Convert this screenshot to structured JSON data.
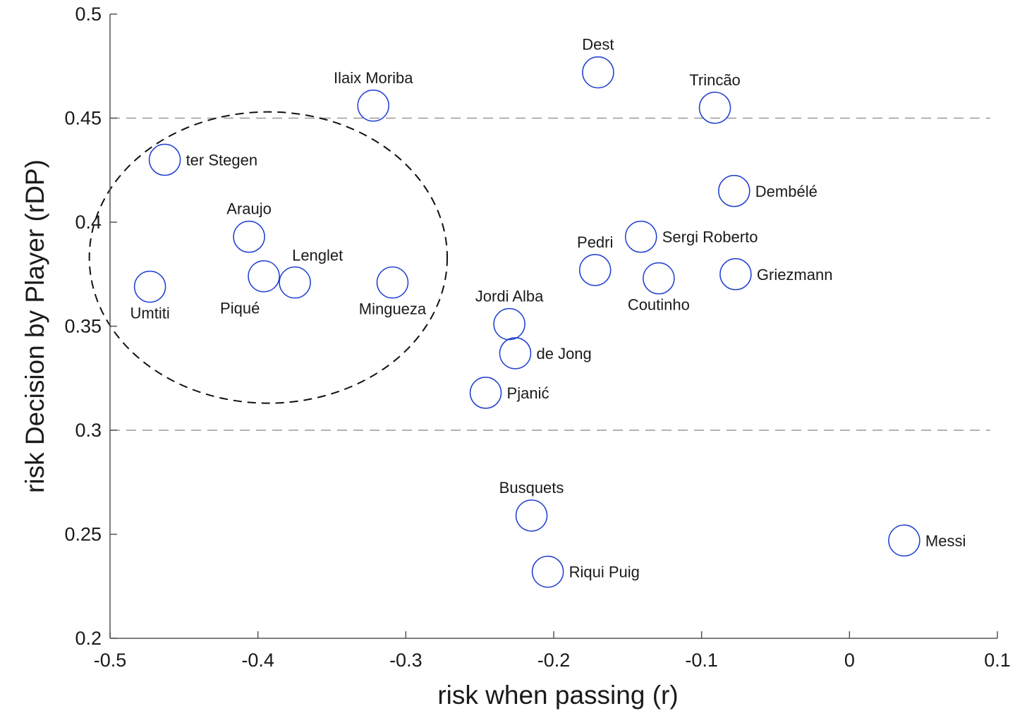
{
  "chart_data": {
    "type": "scatter",
    "xlabel": "risk when passing (r)",
    "ylabel": "risk Decision by Player (rDP)",
    "xlim": [
      -0.5,
      0.1
    ],
    "ylim": [
      0.2,
      0.5
    ],
    "x_ticks": [
      -0.5,
      -0.4,
      -0.3,
      -0.2,
      -0.1,
      0,
      0.1
    ],
    "x_tick_labels": [
      "-0.5",
      "-0.4",
      "-0.3",
      "-0.2",
      "-0.1",
      "0",
      "0.1"
    ],
    "y_ticks": [
      0.2,
      0.25,
      0.3,
      0.35,
      0.4,
      0.45,
      0.5
    ],
    "y_tick_labels": [
      "0.2",
      "0.25",
      "0.3",
      "0.35",
      "0.4",
      "0.45",
      "0.5"
    ],
    "grid": false,
    "reference_lines": [
      0.3,
      0.45
    ],
    "marker_color": "#1f3fcf",
    "reference_line_color": "#999999",
    "points": [
      {
        "label": "Dest",
        "x": -0.17,
        "y": 0.472,
        "label_pos": "above"
      },
      {
        "label": "Trincão",
        "x": -0.091,
        "y": 0.455,
        "label_pos": "above"
      },
      {
        "label": "Ilaix Moriba",
        "x": -0.322,
        "y": 0.456,
        "label_pos": "above"
      },
      {
        "label": "ter Stegen",
        "x": -0.463,
        "y": 0.43,
        "label_pos": "right"
      },
      {
        "label": "Dembélé",
        "x": -0.078,
        "y": 0.415,
        "label_pos": "right"
      },
      {
        "label": "Araujo",
        "x": -0.406,
        "y": 0.393,
        "label_pos": "above"
      },
      {
        "label": "Sergi Roberto",
        "x": -0.141,
        "y": 0.393,
        "label_pos": "right"
      },
      {
        "label": "Pedri",
        "x": -0.172,
        "y": 0.377,
        "label_pos": "above"
      },
      {
        "label": "Griezmann",
        "x": -0.077,
        "y": 0.375,
        "label_pos": "right"
      },
      {
        "label": "Coutinho",
        "x": -0.129,
        "y": 0.373,
        "label_pos": "below"
      },
      {
        "label": "Piqué",
        "x": -0.396,
        "y": 0.374,
        "label_pos": "below-left"
      },
      {
        "label": "Lenglet",
        "x": -0.375,
        "y": 0.371,
        "label_pos": "above-right"
      },
      {
        "label": "Mingueza",
        "x": -0.309,
        "y": 0.371,
        "label_pos": "below"
      },
      {
        "label": "Umtiti",
        "x": -0.473,
        "y": 0.369,
        "label_pos": "below"
      },
      {
        "label": "Jordi Alba",
        "x": -0.23,
        "y": 0.351,
        "label_pos": "above"
      },
      {
        "label": "de Jong",
        "x": -0.226,
        "y": 0.337,
        "label_pos": "right"
      },
      {
        "label": "Pjanić",
        "x": -0.246,
        "y": 0.318,
        "label_pos": "right"
      },
      {
        "label": "Busquets",
        "x": -0.215,
        "y": 0.259,
        "label_pos": "above"
      },
      {
        "label": "Messi",
        "x": 0.037,
        "y": 0.247,
        "label_pos": "right"
      },
      {
        "label": "Riqui Puig",
        "x": -0.204,
        "y": 0.232,
        "label_pos": "right"
      }
    ],
    "annotations": [
      {
        "type": "dashed-ellipse",
        "center_x": -0.393,
        "center_y": 0.383,
        "radius_x": 0.121,
        "radius_y": 0.07
      }
    ]
  }
}
